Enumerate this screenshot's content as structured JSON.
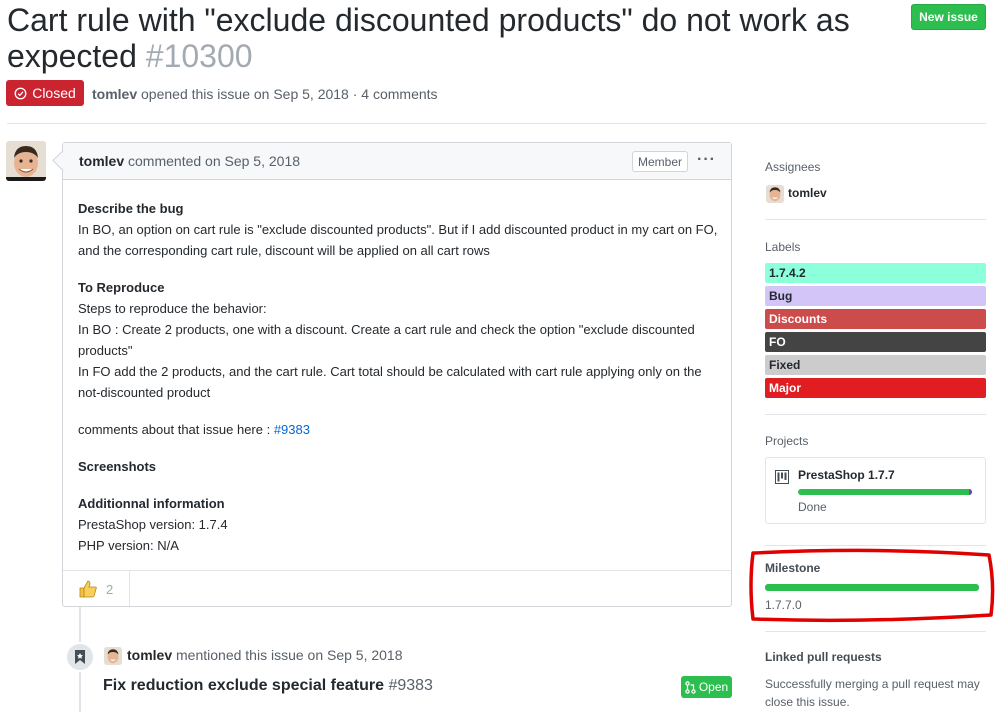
{
  "issue": {
    "title": "Cart rule with \"exclude discounted products\" do not work as expected",
    "number": "#10300",
    "state": "Closed",
    "author": "tomlev",
    "opened_text": "opened this issue on Sep 5, 2018 · 4 comments"
  },
  "header": {
    "new_issue_label": "New issue"
  },
  "comment": {
    "author": "tomlev",
    "commented_text": "commented on Sep 5, 2018",
    "role_badge": "Member",
    "more_label": "···",
    "body": {
      "h_bug": "Describe the bug",
      "p_bug": "In BO, an option on cart rule is \"exclude discounted products\". But if I add discounted product in my cart on FO, and the corresponding cart rule, discount will be applied on all cart rows",
      "h_repro": "To Reproduce",
      "p_repro1": "Steps to reproduce the behavior:",
      "p_repro2": "In BO : Create 2 products, one with a discount. Create a cart rule and check the option \"exclude discounted products\"",
      "p_repro3": "In FO add the 2 products, and the cart rule. Cart total should be calculated with cart rule applying only on the not-discounted product",
      "p_comments_prefix": "comments about that issue here : ",
      "p_comments_link": "#9383",
      "h_screenshots": "Screenshots",
      "h_additional": "Additionnal information",
      "p_version": "PrestaShop version: 1.7.4",
      "p_php": "PHP version: N/A"
    },
    "reaction_count": "2"
  },
  "timeline": {
    "mention_author": "tomlev",
    "mention_text": "mentioned this issue on Sep 5, 2018",
    "pr_title": "Fix reduction exclude special feature",
    "pr_number": "#9383",
    "pr_state": "Open"
  },
  "sidebar": {
    "assignees_heading": "Assignees",
    "assignee": "tomlev",
    "labels_heading": "Labels",
    "labels": [
      {
        "name": "1.7.4.2",
        "bg": "#8cffdb",
        "fg": "#24292e"
      },
      {
        "name": "Bug",
        "bg": "#d4c5f9",
        "fg": "#24292e"
      },
      {
        "name": "Discounts",
        "bg": "#cc4b4b",
        "fg": "#ffffff"
      },
      {
        "name": "FO",
        "bg": "#444444",
        "fg": "#ffffff"
      },
      {
        "name": "Fixed",
        "bg": "#cccccc",
        "fg": "#24292e"
      },
      {
        "name": "Major",
        "bg": "#e11d21",
        "fg": "#ffffff"
      }
    ],
    "projects_heading": "Projects",
    "project_name": "PrestaShop 1.7.7",
    "project_status": "Done",
    "project_progress": 0.98,
    "milestone_heading": "Milestone",
    "milestone_name": "1.7.7.0",
    "milestone_progress": 1.0,
    "linked_heading": "Linked pull requests",
    "linked_text": "Successfully merging a pull request may close this issue."
  },
  "colors": {
    "closed_red": "#cb2431",
    "open_green": "#2cbe4e",
    "link_blue": "#0366d6",
    "annotation_red": "#e00000"
  }
}
